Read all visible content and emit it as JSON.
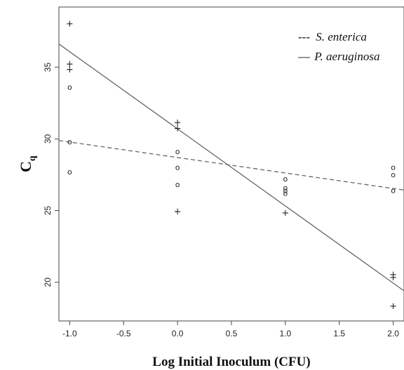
{
  "chart_data": {
    "type": "scatter",
    "xlabel": "Log Initial Inoculum (CFU)",
    "ylabel": "C",
    "ylabel_subscript": "q",
    "xlim": [
      -1.1,
      2.1
    ],
    "ylim": [
      17.3,
      39.2
    ],
    "x_ticks": [
      -1.0,
      -0.5,
      0.0,
      0.5,
      1.0,
      1.5,
      2.0
    ],
    "x_tick_labels": [
      "-1.0",
      "-0.5",
      "0.0",
      "0.5",
      "1.0",
      "1.5",
      "2.0"
    ],
    "y_ticks": [
      20,
      25,
      30,
      35
    ],
    "y_tick_labels": [
      "20",
      "25",
      "30",
      "35"
    ],
    "legend_position": "top-right",
    "series": [
      {
        "name": "S. enterica",
        "legend_label": "S. enterica",
        "legend_prefix": "---",
        "marker": "o",
        "line_style": "dashed",
        "fit": {
          "intercept": 28.7,
          "slope": -1.08
        },
        "points": [
          {
            "x": -1.0,
            "y": 33.6
          },
          {
            "x": -1.0,
            "y": 29.8
          },
          {
            "x": -1.0,
            "y": 27.7
          },
          {
            "x": 0.0,
            "y": 29.1
          },
          {
            "x": 0.0,
            "y": 28.0
          },
          {
            "x": 0.0,
            "y": 26.8
          },
          {
            "x": 1.0,
            "y": 27.2
          },
          {
            "x": 1.0,
            "y": 26.6
          },
          {
            "x": 1.0,
            "y": 26.4
          },
          {
            "x": 1.0,
            "y": 26.2
          },
          {
            "x": 2.0,
            "y": 28.0
          },
          {
            "x": 2.0,
            "y": 27.5
          },
          {
            "x": 2.0,
            "y": 26.4
          }
        ]
      },
      {
        "name": "P. aeruginosa",
        "legend_label": "P. aeruginosa",
        "legend_prefix": "—",
        "marker": "+",
        "line_style": "solid",
        "fit": {
          "intercept": 30.7,
          "slope": -5.38
        },
        "points": [
          {
            "x": -1.0,
            "y": 38.0
          },
          {
            "x": -1.0,
            "y": 35.2
          },
          {
            "x": -1.0,
            "y": 34.8
          },
          {
            "x": 0.0,
            "y": 31.1
          },
          {
            "x": 0.0,
            "y": 30.7
          },
          {
            "x": 0.0,
            "y": 24.9
          },
          {
            "x": 1.0,
            "y": 24.8
          },
          {
            "x": 2.0,
            "y": 20.5
          },
          {
            "x": 2.0,
            "y": 20.3
          },
          {
            "x": 2.0,
            "y": 18.3
          }
        ]
      }
    ]
  }
}
